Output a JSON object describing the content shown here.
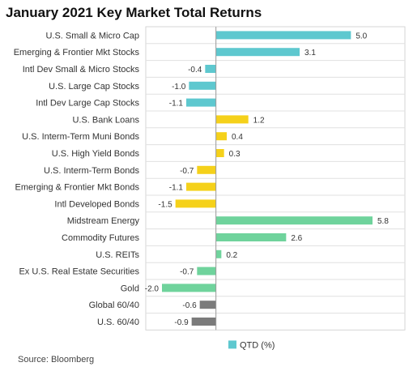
{
  "chart_data": {
    "type": "bar",
    "orientation": "horizontal",
    "title": "January 2021 Key Market Total Returns",
    "categories": [
      "U.S. Small & Micro Cap",
      "Emerging & Frontier Mkt Stocks",
      "Intl Dev Small & Micro Stocks",
      "U.S. Large Cap Stocks",
      "Intl Dev Large Cap Stocks",
      "U.S. Bank Loans",
      "U.S. Interm-Term Muni Bonds",
      "U.S. High Yield Bonds",
      "U.S. Interm-Term Bonds",
      "Emerging & Frontier Mkt Bonds",
      "Intl Developed Bonds",
      "Midstream Energy",
      "Commodity Futures",
      "U.S. REITs",
      "Ex U.S. Real Estate Securities",
      "Gold",
      "Global 60/40",
      "U.S. 60/40"
    ],
    "series": [
      {
        "name": "QTD (%)",
        "values": [
          5.0,
          3.1,
          -0.4,
          -1.0,
          -1.1,
          1.2,
          0.4,
          0.3,
          -0.7,
          -1.1,
          -1.5,
          5.8,
          2.6,
          0.2,
          -0.7,
          -2.0,
          -0.6,
          -0.9
        ]
      }
    ],
    "value_labels": [
      "5.0",
      "3.1",
      "-0.4",
      "-1.0",
      "-1.1",
      "1.2",
      "0.4",
      "0.3",
      "-0.7",
      "-1.1",
      "-1.5",
      "5.8",
      "2.6",
      "0.2",
      "-0.7",
      "-2.0",
      "-0.6",
      "-0.9"
    ],
    "bar_colors": [
      "#5ec8cf",
      "#5ec8cf",
      "#5ec8cf",
      "#5ec8cf",
      "#5ec8cf",
      "#f5d11a",
      "#f5d11a",
      "#f5d11a",
      "#f5d11a",
      "#f5d11a",
      "#f5d11a",
      "#6fd39c",
      "#6fd39c",
      "#6fd39c",
      "#6fd39c",
      "#6fd39c",
      "#7b7b7b",
      "#7b7b7b"
    ],
    "xlim": [
      -2.6,
      7.0
    ],
    "grid": "horizontal row separators",
    "legend_position": "bottom",
    "legend_color": "#5ec8cf"
  },
  "source": "Source: Bloomberg"
}
